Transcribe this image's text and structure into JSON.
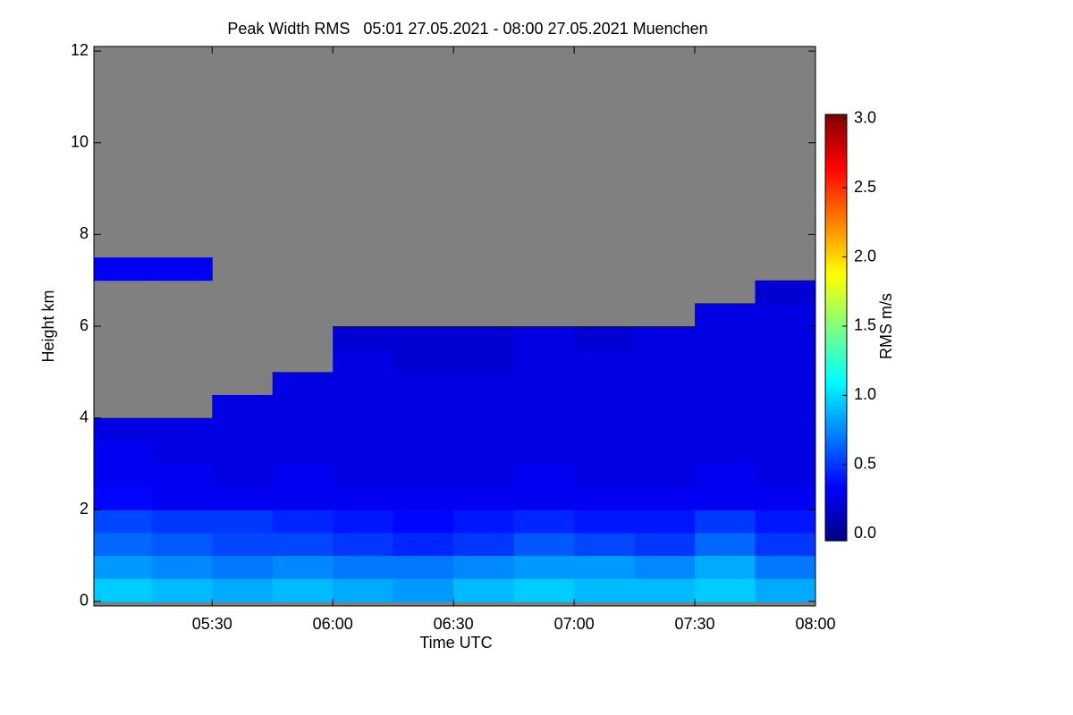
{
  "chart_data": {
    "type": "heatmap",
    "title": "Peak Width RMS   05:01 27.05.2021 - 08:00 27.05.2021 Muenchen",
    "x_label": "Time UTC",
    "y_label": "Height km",
    "colorbar_label": "RMS m/s",
    "x": [
      5.125,
      5.375,
      5.625,
      5.875,
      6.125,
      6.375,
      6.625,
      6.875,
      7.125,
      7.375,
      7.625,
      7.875
    ],
    "y": [
      0.25,
      0.75,
      1.25,
      1.75,
      2.25,
      2.75,
      3.25,
      3.75,
      4.25,
      4.75,
      5.25,
      5.75,
      6.25,
      6.75,
      7.25
    ],
    "z": [
      [
        0.95,
        0.9,
        0.85,
        0.9,
        0.85,
        0.8,
        0.9,
        0.95,
        0.9,
        0.9,
        0.95,
        0.85
      ],
      [
        0.8,
        0.75,
        0.7,
        0.75,
        0.7,
        0.7,
        0.75,
        0.8,
        0.8,
        0.75,
        0.85,
        0.7
      ],
      [
        0.65,
        0.6,
        0.55,
        0.55,
        0.5,
        0.45,
        0.5,
        0.6,
        0.55,
        0.5,
        0.65,
        0.5
      ],
      [
        0.55,
        0.5,
        0.5,
        0.45,
        0.4,
        0.35,
        0.4,
        0.45,
        0.4,
        0.4,
        0.5,
        0.4
      ],
      [
        0.35,
        0.3,
        0.3,
        0.3,
        0.3,
        0.3,
        0.3,
        0.3,
        0.3,
        0.3,
        0.3,
        0.3
      ],
      [
        0.3,
        0.3,
        0.25,
        0.3,
        0.25,
        0.25,
        0.25,
        0.3,
        0.25,
        0.25,
        0.3,
        0.25
      ],
      [
        0.3,
        0.25,
        0.25,
        0.25,
        0.25,
        0.25,
        0.25,
        0.25,
        0.25,
        0.25,
        0.25,
        0.25
      ],
      [
        0.25,
        0.25,
        0.25,
        0.25,
        0.25,
        0.25,
        0.25,
        0.25,
        0.25,
        0.25,
        0.25,
        0.25
      ],
      [
        null,
        null,
        0.25,
        0.25,
        0.25,
        0.25,
        0.25,
        0.25,
        0.25,
        0.25,
        0.25,
        0.25
      ],
      [
        null,
        null,
        null,
        0.25,
        0.25,
        0.25,
        0.25,
        0.25,
        0.25,
        0.25,
        0.25,
        0.25
      ],
      [
        null,
        null,
        null,
        null,
        0.25,
        0.2,
        0.2,
        0.25,
        0.25,
        0.25,
        0.25,
        0.25
      ],
      [
        null,
        null,
        null,
        null,
        0.2,
        0.2,
        0.2,
        0.25,
        0.2,
        0.25,
        0.25,
        0.25
      ],
      [
        null,
        null,
        null,
        null,
        null,
        null,
        null,
        null,
        null,
        null,
        0.25,
        0.25
      ],
      [
        null,
        null,
        null,
        null,
        null,
        null,
        null,
        null,
        null,
        null,
        null,
        0.2
      ],
      [
        0.3,
        0.3,
        null,
        null,
        null,
        null,
        null,
        null,
        null,
        null,
        null,
        null
      ]
    ],
    "xlim": [
      5.01,
      8.0
    ],
    "xticks": [
      {
        "value": 5.5,
        "label": "05:30"
      },
      {
        "value": 6.0,
        "label": "06:00"
      },
      {
        "value": 6.5,
        "label": "06:30"
      },
      {
        "value": 7.0,
        "label": "07:00"
      },
      {
        "value": 7.5,
        "label": "07:30"
      },
      {
        "value": 8.0,
        "label": "08:00"
      }
    ],
    "ylim": [
      -0.1,
      12.1
    ],
    "yticks": [
      0,
      2,
      4,
      6,
      8,
      10,
      12
    ],
    "clim": [
      -0.05,
      3.03
    ],
    "cticks": [
      {
        "value": 0,
        "label": "0.0"
      },
      {
        "value": 0.5,
        "label": "0.5"
      },
      {
        "value": 1,
        "label": "1.0"
      },
      {
        "value": 1.5,
        "label": "1.5"
      },
      {
        "value": 2,
        "label": "2.0"
      },
      {
        "value": 2.5,
        "label": "2.5"
      },
      {
        "value": 3,
        "label": "3.0"
      }
    ],
    "colormap": "jet",
    "background_color": "#808080"
  }
}
